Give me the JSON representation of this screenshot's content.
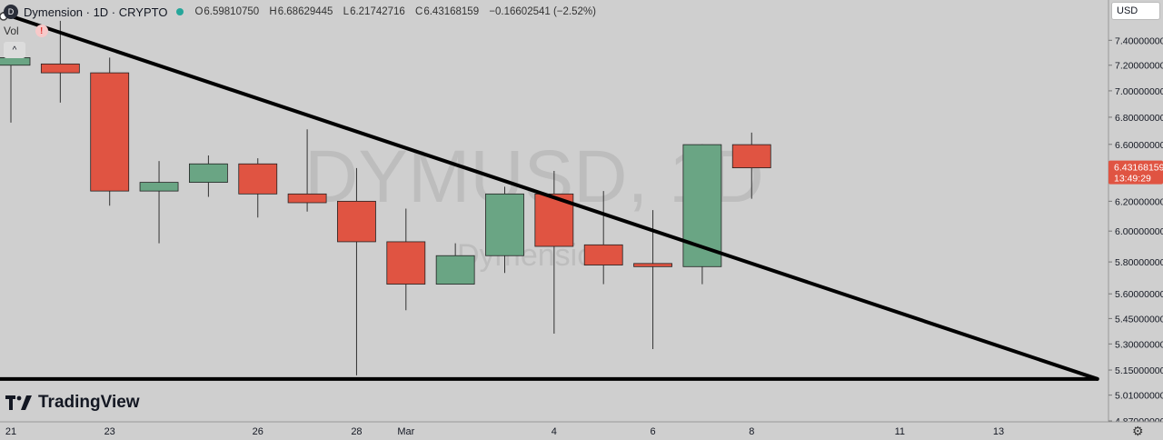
{
  "header": {
    "logo_letter": "D",
    "title": "Dymension · 1D · CRYPTO",
    "ohlc": [
      {
        "k": "O",
        "v": "6.59810750"
      },
      {
        "k": "H",
        "v": "6.68629445"
      },
      {
        "k": "L",
        "v": "6.21742716"
      },
      {
        "k": "C",
        "v": "6.43168159"
      }
    ],
    "change": "−0.16602541 (−2.52%)"
  },
  "vol_label": "Vol",
  "warning_glyph": "!",
  "collapse_glyph": "^",
  "currency": "USD",
  "brand": "TradingView",
  "watermark": {
    "symbol": "DYMUSD, 1D",
    "name": "Dymension"
  },
  "colors": {
    "up": "#6aa584",
    "down": "#e05442",
    "background": "#cfcfcf",
    "trendline": "#000000",
    "price_tag": "#e05442"
  },
  "chart_data": {
    "type": "candlestick",
    "scale": "log",
    "grid": false,
    "ylim": [
      4.87,
      7.62
    ],
    "price_ticks": [
      "7.40000000",
      "7.20000000",
      "7.00000000",
      "6.80000000",
      "6.60000000",
      "6.40000000",
      "6.20000000",
      "6.00000000",
      "5.80000000",
      "5.60000000",
      "5.45000000",
      "5.30000000",
      "5.15000000",
      "5.01000000",
      "4.87000000"
    ],
    "x_ticks": [
      {
        "label": "21",
        "day": 0
      },
      {
        "label": "23",
        "day": 2
      },
      {
        "label": "26",
        "day": 5
      },
      {
        "label": "28",
        "day": 7
      },
      {
        "label": "Mar",
        "day": 8
      },
      {
        "label": "4",
        "day": 11
      },
      {
        "label": "6",
        "day": 13
      },
      {
        "label": "8",
        "day": 15
      },
      {
        "label": "11",
        "day": 18
      },
      {
        "label": "13",
        "day": 20
      }
    ],
    "candles": [
      {
        "day": 0,
        "o": 7.2,
        "h": 7.32,
        "l": 6.76,
        "c": 7.26
      },
      {
        "day": 1,
        "o": 7.21,
        "h": 7.56,
        "l": 6.91,
        "c": 7.14
      },
      {
        "day": 2,
        "o": 7.14,
        "h": 7.26,
        "l": 6.17,
        "c": 6.27
      },
      {
        "day": 3,
        "o": 6.27,
        "h": 6.48,
        "l": 5.92,
        "c": 6.33
      },
      {
        "day": 4,
        "o": 6.33,
        "h": 6.52,
        "l": 6.23,
        "c": 6.46
      },
      {
        "day": 5,
        "o": 6.46,
        "h": 6.5,
        "l": 6.09,
        "c": 6.25
      },
      {
        "day": 6,
        "o": 6.25,
        "h": 6.71,
        "l": 6.13,
        "c": 6.19
      },
      {
        "day": 7,
        "o": 6.2,
        "h": 6.43,
        "l": 5.12,
        "c": 5.93
      },
      {
        "day": 8,
        "o": 5.93,
        "h": 6.15,
        "l": 5.5,
        "c": 5.66
      },
      {
        "day": 9,
        "o": 5.66,
        "h": 5.92,
        "l": 5.66,
        "c": 5.84
      },
      {
        "day": 10,
        "o": 5.84,
        "h": 6.3,
        "l": 5.73,
        "c": 6.25
      },
      {
        "day": 11,
        "o": 6.25,
        "h": 6.41,
        "l": 5.36,
        "c": 5.9
      },
      {
        "day": 12,
        "o": 5.91,
        "h": 6.27,
        "l": 5.66,
        "c": 5.78
      },
      {
        "day": 13,
        "o": 5.79,
        "h": 6.14,
        "l": 5.27,
        "c": 5.77
      },
      {
        "day": 14,
        "o": 5.77,
        "h": 6.6,
        "l": 5.66,
        "c": 6.598
      },
      {
        "day": 15,
        "o": 6.598,
        "h": 6.686,
        "l": 6.217,
        "c": 6.432
      }
    ],
    "last_price": {
      "value": 6.43168159,
      "label": "6.43168159",
      "countdown": "13:49:29"
    },
    "trendlines": [
      {
        "from": {
          "day": -0.15,
          "price": 7.62
        },
        "to": {
          "day": 22.0,
          "price": 5.1
        }
      },
      {
        "from": {
          "day": -0.5,
          "price": 5.1
        },
        "to": {
          "day": 22.0,
          "price": 5.1
        }
      }
    ]
  }
}
